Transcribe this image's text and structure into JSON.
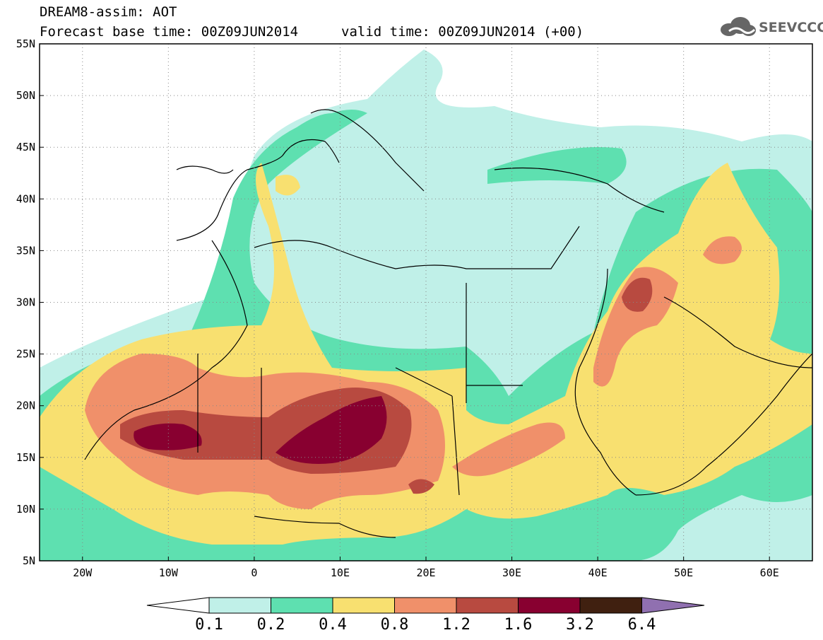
{
  "header": {
    "line1": "DREAM8-assim: AOT",
    "line2": "Forecast base time: 00Z09JUN2014",
    "line2b": "valid time: 00Z09JUN2014 (+00)"
  },
  "logo": {
    "text": "SEEVCCC",
    "icon": "cloud-logo-icon"
  },
  "map": {
    "lon_range": [
      -25,
      65
    ],
    "lat_range": [
      5,
      55
    ],
    "lat_ticks": [
      "55N",
      "50N",
      "45N",
      "40N",
      "35N",
      "30N",
      "25N",
      "20N",
      "15N",
      "10N",
      "5N"
    ],
    "lon_ticks": [
      "20W",
      "10W",
      "0",
      "10E",
      "20E",
      "30E",
      "40E",
      "50E",
      "60E"
    ],
    "variable": "AOT"
  },
  "colorbar": {
    "labels": [
      "0.1",
      "0.2",
      "0.4",
      "0.8",
      "1.2",
      "1.6",
      "3.2",
      "6.4"
    ],
    "colors": [
      "#ffffff",
      "#c0f0e8",
      "#5ee0b0",
      "#f8e070",
      "#f0906a",
      "#b84a40",
      "#880030",
      "#402010",
      "#9070b0"
    ]
  }
}
